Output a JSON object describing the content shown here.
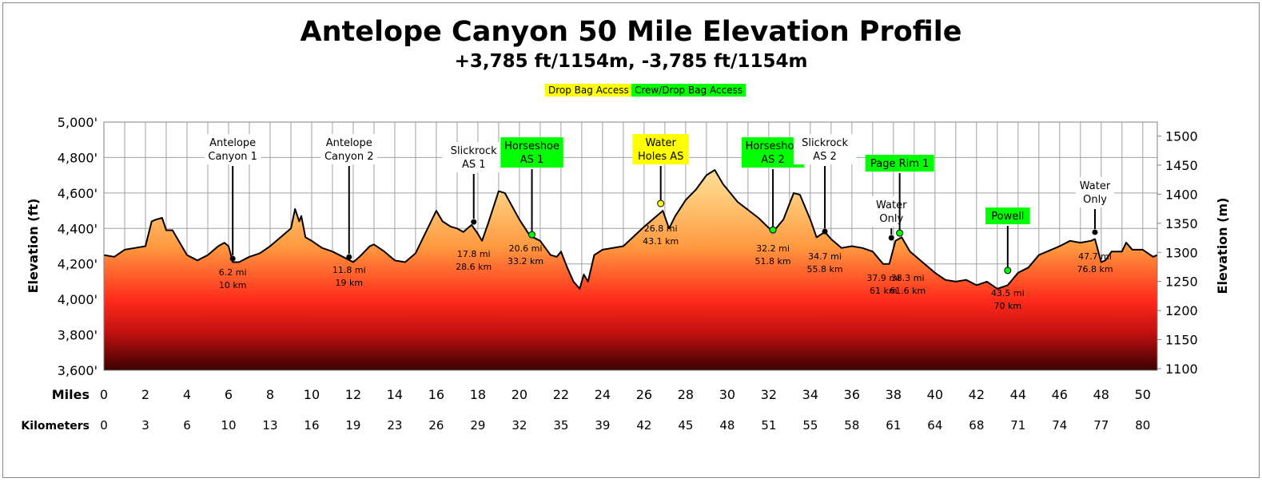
{
  "chart_data": {
    "type": "area",
    "title": "Antelope Canyon 50 Mile Elevation Profile",
    "subtitle": "+3,785 ft/1154m, -3,785 ft/1154m",
    "legend": [
      {
        "label": "Drop Bag Access",
        "color": "#ffff00"
      },
      {
        "label": "Crew/Drop Bag Access",
        "color": "#00ff00"
      }
    ],
    "ylabel": "Elevation (ft)",
    "ylabel_right": "Elevation (m)",
    "xlabel_miles": "Miles",
    "xlabel_km": "Kilometers",
    "ylim": [
      3600,
      5000
    ],
    "ylim_right_m": [
      1100,
      1524
    ],
    "xlim": [
      0,
      50.7
    ],
    "grid": true,
    "y_ticks": [
      "5,000'",
      "4,800'",
      "4,600'",
      "4,400'",
      "4,200'",
      "4,000'",
      "3,800'",
      "3,600'"
    ],
    "y_tick_values": [
      5000,
      4800,
      4600,
      4400,
      4200,
      4000,
      3800,
      3600
    ],
    "y_right_ticks": [
      "1500",
      "1450",
      "1400",
      "1350",
      "1300",
      "1250",
      "1200",
      "1150",
      "1100"
    ],
    "x_ticks_miles": [
      "0",
      "2",
      "4",
      "6",
      "8",
      "10",
      "12",
      "14",
      "16",
      "18",
      "20",
      "22",
      "24",
      "26",
      "28",
      "30",
      "32",
      "34",
      "36",
      "38",
      "40",
      "42",
      "44",
      "46",
      "48",
      "50"
    ],
    "x_ticks_km": [
      "0",
      "3",
      "6",
      "10",
      "13",
      "16",
      "19",
      "23",
      "26",
      "29",
      "32",
      "35",
      "39",
      "42",
      "45",
      "48",
      "51",
      "55",
      "58",
      "61",
      "64",
      "68",
      "71",
      "74",
      "77",
      "80"
    ],
    "profile": [
      [
        0,
        4250
      ],
      [
        0.5,
        4240
      ],
      [
        1,
        4280
      ],
      [
        1.5,
        4290
      ],
      [
        2,
        4300
      ],
      [
        2.3,
        4440
      ],
      [
        2.5,
        4450
      ],
      [
        2.8,
        4460
      ],
      [
        3,
        4390
      ],
      [
        3.3,
        4390
      ],
      [
        4,
        4250
      ],
      [
        4.5,
        4220
      ],
      [
        5,
        4250
      ],
      [
        5.5,
        4300
      ],
      [
        5.8,
        4320
      ],
      [
        6,
        4300
      ],
      [
        6.2,
        4210
      ],
      [
        6.5,
        4210
      ],
      [
        7,
        4240
      ],
      [
        7.5,
        4260
      ],
      [
        8,
        4300
      ],
      [
        8.5,
        4350
      ],
      [
        9,
        4400
      ],
      [
        9.2,
        4510
      ],
      [
        9.4,
        4440
      ],
      [
        9.5,
        4470
      ],
      [
        9.7,
        4350
      ],
      [
        10,
        4330
      ],
      [
        10.5,
        4290
      ],
      [
        11,
        4270
      ],
      [
        11.5,
        4240
      ],
      [
        12,
        4210
      ],
      [
        12.3,
        4240
      ],
      [
        12.8,
        4300
      ],
      [
        13,
        4310
      ],
      [
        13.5,
        4270
      ],
      [
        14,
        4220
      ],
      [
        14.5,
        4210
      ],
      [
        15,
        4260
      ],
      [
        15.5,
        4380
      ],
      [
        16,
        4500
      ],
      [
        16.3,
        4440
      ],
      [
        16.7,
        4410
      ],
      [
        17,
        4400
      ],
      [
        17.3,
        4380
      ],
      [
        17.7,
        4420
      ],
      [
        18,
        4370
      ],
      [
        18.2,
        4330
      ],
      [
        18.5,
        4430
      ],
      [
        19,
        4610
      ],
      [
        19.3,
        4600
      ],
      [
        20,
        4450
      ],
      [
        20.5,
        4360
      ],
      [
        21,
        4330
      ],
      [
        21.5,
        4250
      ],
      [
        21.8,
        4240
      ],
      [
        22,
        4270
      ],
      [
        22.3,
        4180
      ],
      [
        22.6,
        4100
      ],
      [
        22.9,
        4060
      ],
      [
        23.1,
        4140
      ],
      [
        23.3,
        4100
      ],
      [
        23.6,
        4250
      ],
      [
        24,
        4280
      ],
      [
        25,
        4300
      ],
      [
        26,
        4410
      ],
      [
        26.5,
        4460
      ],
      [
        26.9,
        4500
      ],
      [
        27.2,
        4400
      ],
      [
        27.5,
        4470
      ],
      [
        28,
        4560
      ],
      [
        28.5,
        4620
      ],
      [
        29,
        4700
      ],
      [
        29.4,
        4730
      ],
      [
        29.8,
        4650
      ],
      [
        30.5,
        4550
      ],
      [
        31.5,
        4460
      ],
      [
        32.2,
        4380
      ],
      [
        32.7,
        4450
      ],
      [
        33.2,
        4600
      ],
      [
        33.5,
        4590
      ],
      [
        34,
        4450
      ],
      [
        34.3,
        4350
      ],
      [
        34.7,
        4380
      ],
      [
        35,
        4340
      ],
      [
        35.5,
        4290
      ],
      [
        36,
        4300
      ],
      [
        36.5,
        4290
      ],
      [
        37,
        4270
      ],
      [
        37.5,
        4200
      ],
      [
        37.8,
        4200
      ],
      [
        38.1,
        4330
      ],
      [
        38.4,
        4350
      ],
      [
        38.8,
        4270
      ],
      [
        39.5,
        4200
      ],
      [
        40,
        4150
      ],
      [
        40.5,
        4110
      ],
      [
        41,
        4100
      ],
      [
        41.5,
        4110
      ],
      [
        42,
        4080
      ],
      [
        42.5,
        4100
      ],
      [
        43,
        4060
      ],
      [
        43.5,
        4080
      ],
      [
        44,
        4150
      ],
      [
        44.5,
        4180
      ],
      [
        45,
        4250
      ],
      [
        46,
        4300
      ],
      [
        46.5,
        4330
      ],
      [
        47,
        4320
      ],
      [
        47.5,
        4330
      ],
      [
        47.7,
        4340
      ],
      [
        48,
        4210
      ],
      [
        48.2,
        4220
      ],
      [
        48.5,
        4270
      ],
      [
        49,
        4270
      ],
      [
        49.2,
        4320
      ],
      [
        49.5,
        4280
      ],
      [
        50,
        4280
      ],
      [
        50.5,
        4240
      ],
      [
        50.7,
        4250
      ]
    ],
    "annotations": [
      {
        "name": "Antelope\nCanyon 1",
        "mi": 6.2,
        "elev": 4230,
        "dist": "6.2 mi",
        "km": "10 km",
        "type": "none",
        "color": "#ffffff"
      },
      {
        "name": "Antelope\nCanyon 2",
        "mi": 11.8,
        "elev": 4239,
        "dist": "11.8 mi",
        "km": "19 km",
        "type": "none",
        "color": "#ffffff"
      },
      {
        "name": "Slickrock\nAS 1",
        "mi": 17.8,
        "elev": 4437,
        "dist": "17.8 mi",
        "km": "28.6 km",
        "type": "none",
        "color": "#ffffff"
      },
      {
        "name": "Horseshoe\nAS 1",
        "mi": 20.6,
        "elev": 4365,
        "dist": "20.6 mi",
        "km": "33.2 km",
        "type": "crew",
        "color": "#00ff00"
      },
      {
        "name": "Water\nHoles AS",
        "mi": 26.8,
        "elev": 4541,
        "dist": "26.8 mi",
        "km": "43.1 km",
        "type": "drop",
        "color": "#ffff00"
      },
      {
        "name": "Horseshoe\nAS 2",
        "mi": 32.2,
        "elev": 4392,
        "dist": "32.2 mi",
        "km": "51.8 km",
        "type": "crew",
        "color": "#00ff00"
      },
      {
        "name": "Slickrock\nAS 2",
        "mi": 34.7,
        "elev": 4383,
        "dist": "34.7 mi",
        "km": "55.8 km",
        "type": "none",
        "color": "#ffffff"
      },
      {
        "name": "Water\nOnly",
        "mi": 37.9,
        "elev": 4347,
        "dist": "37.9 mi",
        "km": "61 km",
        "type": "none",
        "color": "#ffffff"
      },
      {
        "name": "Page Rim 1",
        "mi": 38.3,
        "elev": 4374,
        "dist": "38.3 mi",
        "km": "61.6 km",
        "type": "crew",
        "color": "#00ff00"
      },
      {
        "name": "Powell",
        "mi": 43.5,
        "elev": 4163,
        "dist": "43.5 mi",
        "km": "70 km",
        "type": "crew",
        "color": "#00ff00"
      },
      {
        "name": "Water\nOnly",
        "mi": 47.7,
        "elev": 4379,
        "dist": "47.7 mi",
        "km": "76.8 km",
        "type": "none",
        "color": "#ffffff"
      }
    ]
  }
}
